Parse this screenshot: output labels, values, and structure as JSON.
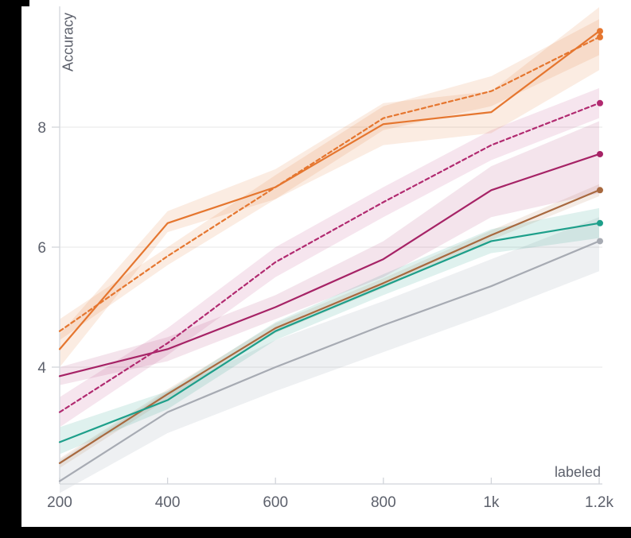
{
  "colors": {
    "frame": "#000000",
    "background": "#ffffff",
    "grid": "#ececec",
    "axis_line": "#d9dce0",
    "tick_mark": "#d2d5da",
    "tick_text": "#5d616c"
  },
  "chart_data": {
    "type": "line",
    "title": "",
    "xlabel": "labeled",
    "ylabel": "Accuracy",
    "x": [
      200,
      400,
      600,
      800,
      1000,
      1200
    ],
    "x_tick_labels": [
      "200",
      "400",
      "600",
      "800",
      "1k",
      "1.2k"
    ],
    "y_ticks": [
      4,
      6,
      8
    ],
    "y_tick_labels": [
      "4",
      "6",
      "8"
    ],
    "xlim": [
      200,
      1200
    ],
    "ylim": [
      2.05,
      10.0
    ],
    "grid": "horizontal",
    "legend_position": "none",
    "band_note": "each series has a shaded confidence band and a dot marker on the last point",
    "series": [
      {
        "name": "gray-solid",
        "color": "#a7abb3",
        "band_color": "rgba(144,152,165,0.15)",
        "line_style": "solid",
        "values": [
          2.1,
          3.25,
          4.0,
          4.7,
          5.35,
          6.1
        ],
        "band_lower": [
          1.9,
          2.9,
          3.6,
          4.25,
          4.9,
          5.6
        ],
        "band_upper": [
          2.45,
          3.6,
          4.45,
          5.1,
          5.8,
          6.5
        ]
      },
      {
        "name": "brown-solid",
        "color": "#a8693f",
        "band_color": "rgba(168,105,63,0.13)",
        "line_style": "solid",
        "values": [
          2.4,
          3.55,
          4.65,
          5.4,
          6.2,
          6.95
        ],
        "band_lower": [
          2.32,
          3.47,
          4.57,
          5.32,
          6.12,
          6.85
        ],
        "band_upper": [
          2.48,
          3.63,
          4.73,
          5.48,
          6.28,
          7.05
        ]
      },
      {
        "name": "teal-solid",
        "color": "#1d9f8a",
        "band_color": "rgba(29,159,138,0.14)",
        "line_style": "solid",
        "values": [
          2.75,
          3.45,
          4.6,
          5.35,
          6.1,
          6.4
        ],
        "band_lower": [
          2.55,
          3.3,
          4.45,
          5.2,
          5.9,
          6.15
        ],
        "band_upper": [
          3.0,
          3.6,
          4.75,
          5.55,
          6.3,
          6.65
        ]
      },
      {
        "name": "magenta-solid",
        "color": "#a62366",
        "band_color": "rgba(166,35,102,0.12)",
        "line_style": "solid",
        "values": [
          3.85,
          4.3,
          5.0,
          5.8,
          6.95,
          7.55
        ],
        "band_lower": [
          3.7,
          4.1,
          4.8,
          5.5,
          6.5,
          6.9
        ],
        "band_upper": [
          4.0,
          4.5,
          5.2,
          6.1,
          7.35,
          8.1
        ]
      },
      {
        "name": "magenta-dashed",
        "color": "#b12a70",
        "band_color": "rgba(177,42,112,0.12)",
        "line_style": "dashed",
        "values": [
          3.25,
          4.4,
          5.75,
          6.75,
          7.7,
          8.4
        ],
        "band_lower": [
          3.0,
          4.2,
          5.5,
          6.5,
          7.45,
          8.15
        ],
        "band_upper": [
          3.5,
          4.65,
          6.0,
          7.0,
          7.95,
          8.65
        ]
      },
      {
        "name": "orange-solid",
        "color": "#e5762f",
        "band_color": "rgba(229,118,47,0.14)",
        "line_style": "solid",
        "values": [
          4.3,
          6.4,
          7.0,
          8.05,
          8.25,
          9.6
        ],
        "band_lower": [
          4.0,
          6.25,
          6.8,
          7.7,
          7.9,
          8.95
        ],
        "band_upper": [
          4.55,
          6.6,
          7.3,
          8.4,
          8.6,
          10.0
        ]
      },
      {
        "name": "orange-dashed",
        "color": "#e5762f",
        "band_color": "rgba(229,118,47,0.14)",
        "line_style": "dashed",
        "values": [
          4.6,
          5.85,
          7.0,
          8.15,
          8.6,
          9.5
        ],
        "band_lower": [
          4.45,
          5.7,
          6.8,
          7.95,
          8.35,
          9.2
        ],
        "band_upper": [
          4.8,
          6.0,
          7.2,
          8.35,
          8.85,
          9.8
        ]
      }
    ]
  }
}
